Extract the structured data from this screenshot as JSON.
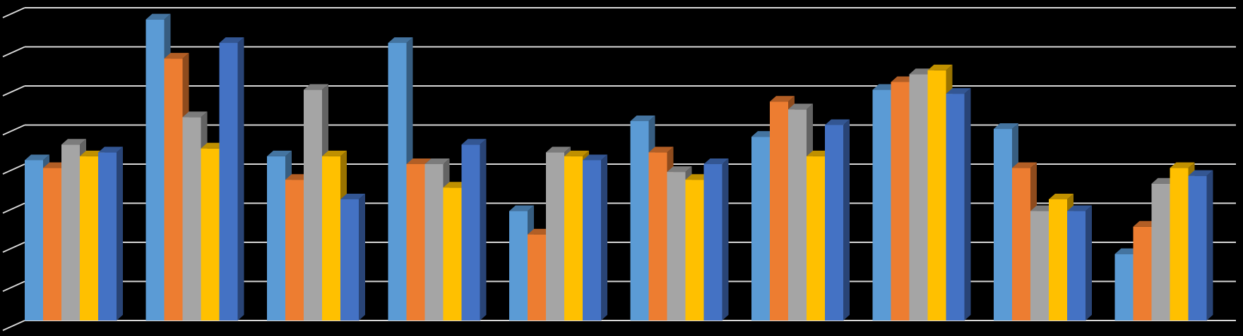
{
  "chart_data": {
    "type": "bar3d",
    "categories": [
      null,
      null,
      null,
      null,
      null,
      null,
      null,
      null,
      null,
      null
    ],
    "series": [
      {
        "color": "#5b9bd5",
        "values": [
          4.1,
          7.7,
          4.2,
          7.1,
          2.8,
          5.1,
          4.7,
          5.9,
          4.9,
          1.7
        ]
      },
      {
        "color": "#ed7d31",
        "values": [
          3.9,
          6.7,
          3.6,
          4.0,
          2.2,
          4.3,
          5.6,
          6.1,
          3.9,
          2.4
        ]
      },
      {
        "color": "#a5a5a5",
        "values": [
          4.5,
          5.2,
          5.9,
          4.0,
          4.3,
          3.8,
          5.4,
          6.3,
          2.8,
          3.5
        ]
      },
      {
        "color": "#ffc000",
        "values": [
          4.2,
          4.4,
          4.2,
          3.4,
          4.2,
          3.6,
          4.2,
          6.4,
          3.1,
          3.9
        ]
      },
      {
        "color": "#4472c4",
        "values": [
          4.3,
          7.1,
          3.1,
          4.5,
          4.1,
          4.0,
          5.0,
          5.8,
          2.8,
          3.7
        ]
      }
    ],
    "ylim": [
      0,
      8
    ],
    "yticks": [
      0,
      1,
      2,
      3,
      4,
      5,
      6,
      7,
      8
    ],
    "grid": true
  }
}
